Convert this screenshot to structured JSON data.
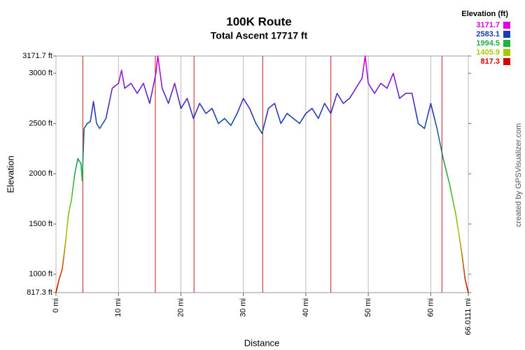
{
  "chart_data": {
    "type": "line",
    "title": "100K Route",
    "subtitle": "Total Ascent 17717 ft",
    "x_label": "Distance",
    "y_label": "Elevation",
    "watermark": "created by GPSVisualizer.com",
    "x": [
      0,
      0.5,
      1,
      1.5,
      2,
      2.5,
      3,
      3.5,
      4,
      4.2,
      4.5,
      5,
      5.5,
      6,
      6.5,
      7,
      8,
      9,
      10,
      10.5,
      11,
      12,
      13,
      14,
      15,
      16,
      16.3,
      17,
      18,
      19,
      20,
      21,
      22,
      23,
      24,
      25,
      26,
      27,
      28,
      29,
      30,
      31,
      32,
      33,
      34,
      35,
      36,
      37,
      38,
      39,
      40,
      41,
      42,
      43,
      44,
      45,
      46,
      47,
      48,
      49,
      49.5,
      50,
      51,
      52,
      53,
      54,
      55,
      56,
      57,
      58,
      59,
      60,
      61,
      62,
      63,
      64,
      65,
      65.5,
      66.0111
    ],
    "series": [
      {
        "name": "Elevation",
        "values": [
          817.3,
          950,
          1050,
          1300,
          1600,
          1750,
          2000,
          2150,
          2100,
          1930,
          2450,
          2500,
          2520,
          2720,
          2500,
          2450,
          2550,
          2850,
          2900,
          3030,
          2850,
          2900,
          2800,
          2900,
          2700,
          3000,
          3171.7,
          2850,
          2700,
          2900,
          2650,
          2750,
          2550,
          2700,
          2600,
          2650,
          2500,
          2550,
          2480,
          2600,
          2750,
          2650,
          2500,
          2400,
          2650,
          2700,
          2500,
          2600,
          2550,
          2500,
          2600,
          2650,
          2550,
          2700,
          2600,
          2800,
          2700,
          2750,
          2850,
          2950,
          3171.7,
          2900,
          2800,
          2900,
          2850,
          3000,
          2750,
          2800,
          2800,
          2500,
          2450,
          2700,
          2450,
          2150,
          1900,
          1600,
          1200,
          950,
          817.3
        ]
      }
    ],
    "markers": [
      4.3,
      15.9,
      22.1,
      33.1,
      44.0,
      61.8
    ],
    "marker_color": "#d04040",
    "xlim": [
      0,
      66.0111
    ],
    "xticks": [
      {
        "value": 0,
        "label": "0 mi"
      },
      {
        "value": 10,
        "label": "10 mi"
      },
      {
        "value": 20,
        "label": "20 mi"
      },
      {
        "value": 30,
        "label": "30 mi"
      },
      {
        "value": 40,
        "label": "40 mi"
      },
      {
        "value": 50,
        "label": "50 mi"
      },
      {
        "value": 60,
        "label": "60 mi"
      },
      {
        "value": 66.0111,
        "label": "66.0111 mi"
      }
    ],
    "ylim": [
      817.3,
      3171.7
    ],
    "yticks": [
      {
        "value": 817.3,
        "label": "817.3 ft"
      },
      {
        "value": 1000,
        "label": "1000 ft"
      },
      {
        "value": 1500,
        "label": "1500 ft"
      },
      {
        "value": 2000,
        "label": "2000 ft"
      },
      {
        "value": 2500,
        "label": "2500 ft"
      },
      {
        "value": 3000,
        "label": "3000 ft"
      },
      {
        "value": 3171.7,
        "label": "3171.7 ft"
      }
    ],
    "grid": true,
    "legend": {
      "title": "Elevation (ft)",
      "position": "upper right",
      "items": [
        {
          "value": 3171.7,
          "color": "#e000e0"
        },
        {
          "value": 2583.1,
          "color": "#1a3cb8"
        },
        {
          "value": 1994.5,
          "color": "#20b040"
        },
        {
          "value": 1405.9,
          "color": "#a8c800"
        },
        {
          "value": 817.3,
          "color": "#d80000"
        }
      ]
    }
  }
}
